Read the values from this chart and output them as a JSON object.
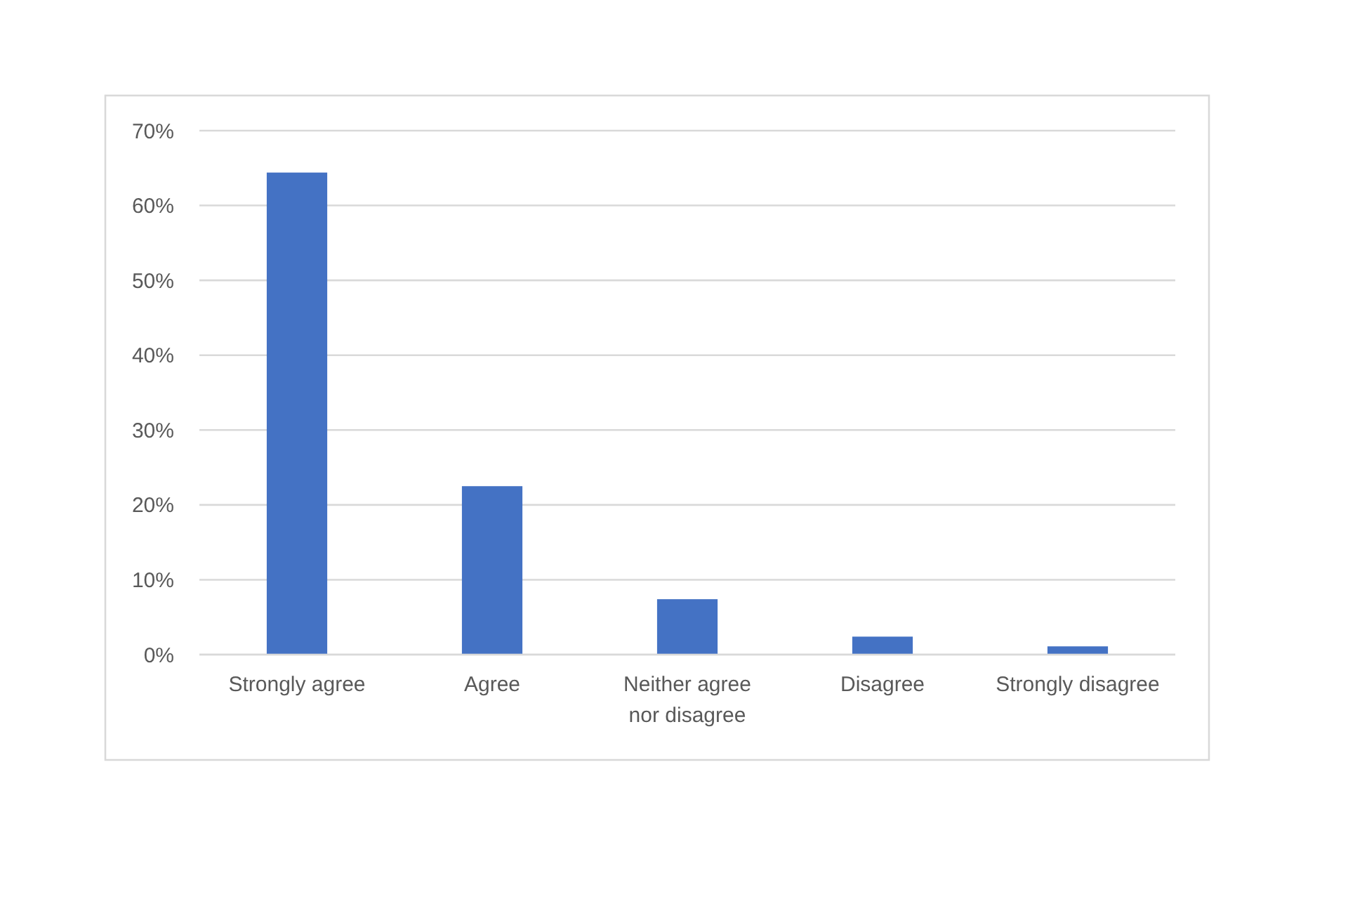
{
  "chart_data": {
    "type": "bar",
    "categories": [
      "Strongly agree",
      "Agree",
      "Neither agree nor disagree",
      "Disagree",
      "Strongly disagree"
    ],
    "values": [
      64.4,
      22.5,
      7.4,
      2.4,
      1.1
    ],
    "color": "#4472c4",
    "ylim": [
      0,
      70
    ],
    "yticks": [
      {
        "value": 0,
        "label": "0%"
      },
      {
        "value": 10,
        "label": "10%"
      },
      {
        "value": 20,
        "label": "20%"
      },
      {
        "value": 30,
        "label": "30%"
      },
      {
        "value": 40,
        "label": "40%"
      },
      {
        "value": 50,
        "label": "50%"
      },
      {
        "value": 60,
        "label": "60%"
      },
      {
        "value": 70,
        "label": "70%"
      }
    ],
    "grid": "y"
  }
}
